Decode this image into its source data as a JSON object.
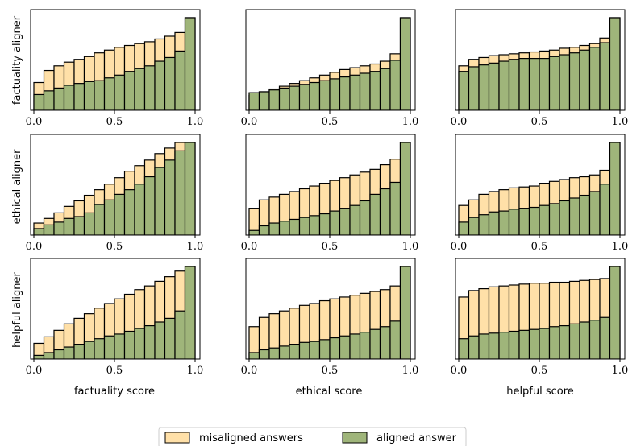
{
  "colors": {
    "misaligned": "#ffe0a8",
    "aligned": "#9fb57a",
    "edge": "#000000"
  },
  "legend": {
    "misaligned_label": "misaligned answers",
    "aligned_label": "aligned answer"
  },
  "chart_data": {
    "type": "bar",
    "layout": "3x3 grid of histograms",
    "rows": [
      "factuality aligner",
      "ethical aligner",
      "helpful aligner"
    ],
    "columns": [
      "factuality score",
      "ethical score",
      "helpful score"
    ],
    "x_ticks": [
      "0.0",
      "0.5",
      "1.0"
    ],
    "xlim": [
      0,
      1
    ],
    "bins": [
      0.0,
      0.0625,
      0.125,
      0.1875,
      0.25,
      0.3125,
      0.375,
      0.4375,
      0.5,
      0.5625,
      0.625,
      0.6875,
      0.75,
      0.8125,
      0.875,
      0.9375
    ],
    "bin_width": 0.0625,
    "series": [
      "misaligned answers",
      "aligned answer"
    ],
    "panels": [
      {
        "row": 0,
        "col": 0,
        "misaligned": [
          0.3,
          0.43,
          0.48,
          0.52,
          0.55,
          0.58,
          0.62,
          0.65,
          0.68,
          0.7,
          0.72,
          0.74,
          0.77,
          0.8,
          0.84,
          1.0
        ],
        "aligned": [
          0.17,
          0.21,
          0.24,
          0.27,
          0.29,
          0.31,
          0.32,
          0.35,
          0.38,
          0.42,
          0.45,
          0.48,
          0.53,
          0.57,
          0.64,
          1.0
        ]
      },
      {
        "row": 0,
        "col": 1,
        "misaligned": [
          0.16,
          0.2,
          0.23,
          0.26,
          0.29,
          0.32,
          0.35,
          0.38,
          0.41,
          0.44,
          0.46,
          0.48,
          0.5,
          0.53,
          0.61,
          1.0
        ],
        "aligned": [
          0.19,
          0.2,
          0.22,
          0.24,
          0.26,
          0.28,
          0.3,
          0.32,
          0.34,
          0.36,
          0.38,
          0.4,
          0.42,
          0.45,
          0.54,
          1.0
        ]
      },
      {
        "row": 0,
        "col": 2,
        "misaligned": [
          0.48,
          0.55,
          0.57,
          0.59,
          0.6,
          0.61,
          0.62,
          0.63,
          0.64,
          0.65,
          0.67,
          0.68,
          0.7,
          0.72,
          0.78,
          1.0
        ],
        "aligned": [
          0.42,
          0.47,
          0.49,
          0.51,
          0.53,
          0.55,
          0.56,
          0.56,
          0.56,
          0.58,
          0.6,
          0.62,
          0.65,
          0.68,
          0.73,
          1.0
        ]
      },
      {
        "row": 1,
        "col": 0,
        "misaligned": [
          0.13,
          0.18,
          0.24,
          0.31,
          0.37,
          0.43,
          0.49,
          0.55,
          0.62,
          0.69,
          0.75,
          0.81,
          0.88,
          0.94,
          1.0,
          1.0
        ],
        "aligned": [
          0.07,
          0.11,
          0.14,
          0.18,
          0.2,
          0.24,
          0.33,
          0.38,
          0.44,
          0.49,
          0.55,
          0.63,
          0.73,
          0.81,
          0.91,
          1.0
        ]
      },
      {
        "row": 1,
        "col": 1,
        "misaligned": [
          0.29,
          0.38,
          0.41,
          0.44,
          0.47,
          0.5,
          0.53,
          0.56,
          0.59,
          0.62,
          0.65,
          0.68,
          0.71,
          0.76,
          0.82,
          1.0
        ],
        "aligned": [
          0.05,
          0.1,
          0.13,
          0.15,
          0.17,
          0.19,
          0.21,
          0.23,
          0.26,
          0.29,
          0.32,
          0.37,
          0.44,
          0.5,
          0.57,
          1.0
        ]
      },
      {
        "row": 1,
        "col": 2,
        "misaligned": [
          0.32,
          0.38,
          0.44,
          0.47,
          0.49,
          0.51,
          0.52,
          0.53,
          0.56,
          0.58,
          0.6,
          0.62,
          0.63,
          0.65,
          0.7,
          1.0
        ],
        "aligned": [
          0.14,
          0.19,
          0.22,
          0.25,
          0.26,
          0.28,
          0.29,
          0.3,
          0.32,
          0.34,
          0.37,
          0.4,
          0.43,
          0.47,
          0.55,
          1.0
        ]
      },
      {
        "row": 2,
        "col": 0,
        "misaligned": [
          0.17,
          0.24,
          0.31,
          0.38,
          0.44,
          0.49,
          0.55,
          0.6,
          0.65,
          0.7,
          0.75,
          0.79,
          0.84,
          0.89,
          0.95,
          1.0
        ],
        "aligned": [
          0.04,
          0.07,
          0.1,
          0.13,
          0.16,
          0.19,
          0.22,
          0.25,
          0.27,
          0.3,
          0.33,
          0.36,
          0.4,
          0.44,
          0.52,
          1.0
        ]
      },
      {
        "row": 2,
        "col": 1,
        "misaligned": [
          0.35,
          0.45,
          0.49,
          0.52,
          0.55,
          0.58,
          0.6,
          0.63,
          0.65,
          0.67,
          0.69,
          0.71,
          0.73,
          0.75,
          0.79,
          1.0
        ],
        "aligned": [
          0.07,
          0.1,
          0.12,
          0.14,
          0.16,
          0.18,
          0.19,
          0.21,
          0.23,
          0.25,
          0.27,
          0.29,
          0.32,
          0.35,
          0.41,
          1.0
        ]
      },
      {
        "row": 2,
        "col": 2,
        "misaligned": [
          0.67,
          0.74,
          0.76,
          0.78,
          0.79,
          0.8,
          0.81,
          0.82,
          0.82,
          0.83,
          0.83,
          0.84,
          0.85,
          0.86,
          0.87,
          1.0
        ],
        "aligned": [
          0.22,
          0.25,
          0.27,
          0.28,
          0.29,
          0.3,
          0.31,
          0.32,
          0.33,
          0.35,
          0.36,
          0.38,
          0.4,
          0.42,
          0.45,
          1.0
        ]
      }
    ]
  }
}
